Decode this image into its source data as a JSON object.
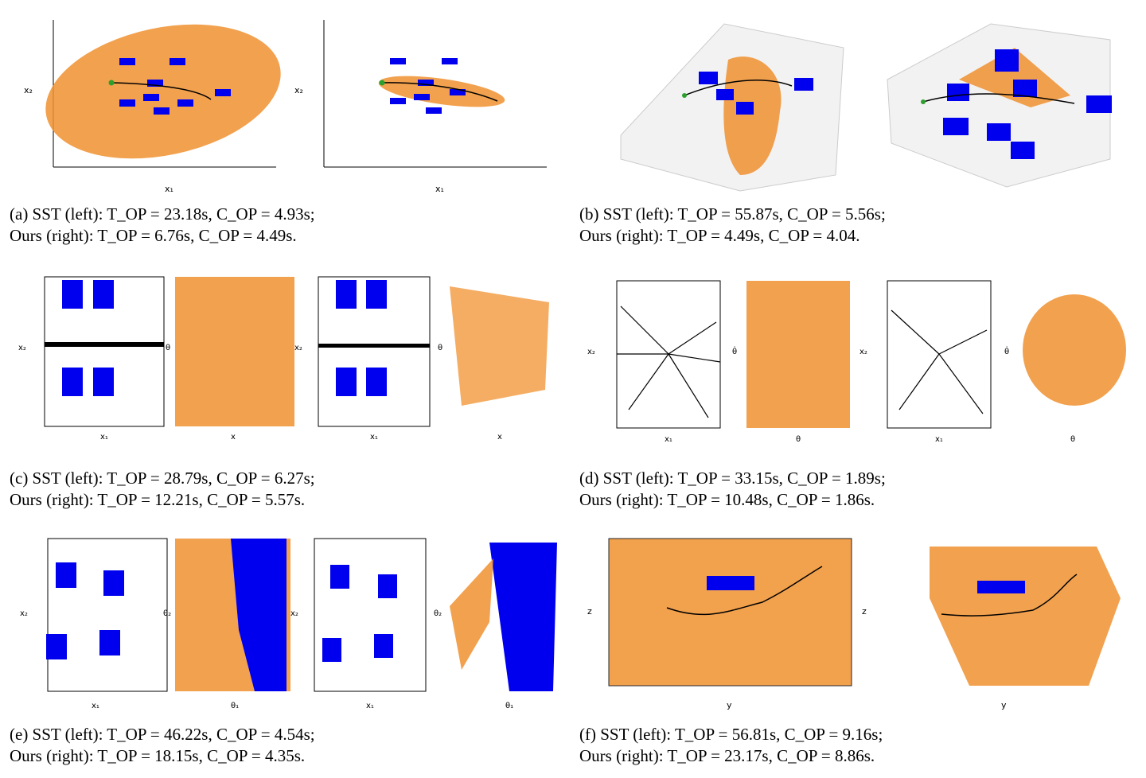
{
  "captions": {
    "a": {
      "line1": "(a) SST (left): T_OP = 23.18s, C_OP = 4.93s;",
      "line2": "Ours (right): T_OP = 6.76s, C_OP = 4.49s."
    },
    "b": {
      "line1": "(b) SST (left): T_OP = 55.87s, C_OP = 5.56s;",
      "line2": "Ours (right): T_OP = 4.49s, C_OP = 4.04."
    },
    "c": {
      "line1": "(c) SST (left): T_OP = 28.79s, C_OP = 6.27s;",
      "line2": "Ours (right): T_OP = 12.21s, C_OP = 5.57s."
    },
    "d": {
      "line1": "(d) SST (left): T_OP = 33.15s, C_OP = 1.89s;",
      "line2": "Ours (right): T_OP = 10.48s, C_OP = 1.86s."
    },
    "e": {
      "line1": "(e) SST (left): T_OP = 46.22s, C_OP = 4.54s;",
      "line2": "Ours (right): T_OP = 18.15s, C_OP = 4.35s."
    },
    "f": {
      "line1": "(f) SST (left): T_OP = 56.81s, C_OP = 9.16s;",
      "line2": "Ours (right): T_OP = 23.17s, C_OP = 8.86s."
    }
  },
  "axes": {
    "x1": "x₁",
    "x2": "x₂",
    "x": "x",
    "theta": "θ",
    "theta_dot": "θ̇",
    "theta1": "θ₁",
    "theta2": "θ₂",
    "y": "y",
    "z": "z"
  },
  "colors": {
    "samples": "#f0912f",
    "obstacle": "#0000ee",
    "path": "#000000",
    "start": "#2ca02c",
    "goal": "#d62728"
  },
  "chart_data": [
    {
      "type": "scatter",
      "panel": "a-left",
      "xlabel": "x₁",
      "ylabel": "x₂",
      "xlim": [
        -3,
        1
      ],
      "ylim": [
        -3,
        4
      ],
      "xticks": [
        "-3",
        "-2",
        "-1",
        "0",
        "1"
      ],
      "yticks": [
        "-3",
        "-2",
        "-1",
        "0",
        "1",
        "2",
        "3",
        "4"
      ]
    },
    {
      "type": "scatter",
      "panel": "a-right",
      "xlabel": "x₁",
      "ylabel": "x₂",
      "xlim": [
        -3,
        1
      ],
      "ylim": [
        -3,
        4
      ],
      "xticks": [
        "-3",
        "-2",
        "-1",
        "0",
        "1"
      ],
      "yticks": [
        "-3",
        "-2",
        "-1",
        "0",
        "1",
        "2",
        "3",
        "4"
      ]
    },
    {
      "type": "scatter",
      "panel": "c-1",
      "xlabel": "x₁",
      "ylabel": "x₂",
      "xticks": [
        "0.0",
        "2.5",
        "5.0",
        "7.5",
        "10.0"
      ],
      "yticks": [
        "-4",
        "-2",
        "0",
        "2",
        "4"
      ]
    },
    {
      "type": "scatter",
      "panel": "c-2",
      "xlabel": "x",
      "ylabel": "θ",
      "xticks": [
        "0.0",
        "2.5",
        "5.0",
        "7.5",
        "10.0"
      ],
      "yticks": [
        "-π",
        "-2",
        "-1",
        "0",
        "1",
        "2",
        "π"
      ]
    },
    {
      "type": "scatter",
      "panel": "d-1",
      "xlabel": "x₁",
      "ylabel": "x₂",
      "xticks": [
        "-1.0",
        "-0.5",
        "0.0",
        "0.5",
        "1.0"
      ],
      "yticks": [
        "-1.00",
        "-0.75",
        "-0.50",
        "-0.25",
        "0.00",
        "0.25",
        "0.50",
        "0.75",
        "1.00"
      ]
    },
    {
      "type": "scatter",
      "panel": "d-2",
      "xlabel": "θ",
      "ylabel": "θ̇",
      "xticks": [
        "-π",
        "-2",
        "-1",
        "0",
        "1",
        "2",
        "π"
      ],
      "yticks": [
        "-8",
        "-4",
        "0",
        "4",
        "8"
      ]
    },
    {
      "type": "scatter",
      "panel": "e-1",
      "xlabel": "x₁",
      "ylabel": "x₂",
      "xticks": [
        "-2",
        "0",
        "2"
      ],
      "yticks": [
        "-3",
        "-2",
        "-1",
        "0",
        "1",
        "2",
        "3"
      ]
    },
    {
      "type": "scatter",
      "panel": "e-2",
      "xlabel": "θ₁",
      "ylabel": "θ₂",
      "xticks": [
        "-π",
        "-2",
        "-1",
        "0",
        "1",
        "2",
        "π"
      ],
      "yticks": [
        "-3",
        "-2",
        "-1",
        "0",
        "1",
        "2",
        "3"
      ]
    },
    {
      "type": "scatter",
      "panel": "f-left",
      "xlabel": "y",
      "ylabel": "z",
      "xlim": [
        -2,
        2
      ],
      "ylim": [
        -2,
        2
      ],
      "xticks": [
        "-2.0",
        "-1.5",
        "-1.0",
        "-0.5",
        "0.0",
        "0.5",
        "1.0",
        "1.5",
        "2.0"
      ],
      "yticks": [
        "-2",
        "-1",
        "0",
        "1",
        "2"
      ]
    }
  ]
}
